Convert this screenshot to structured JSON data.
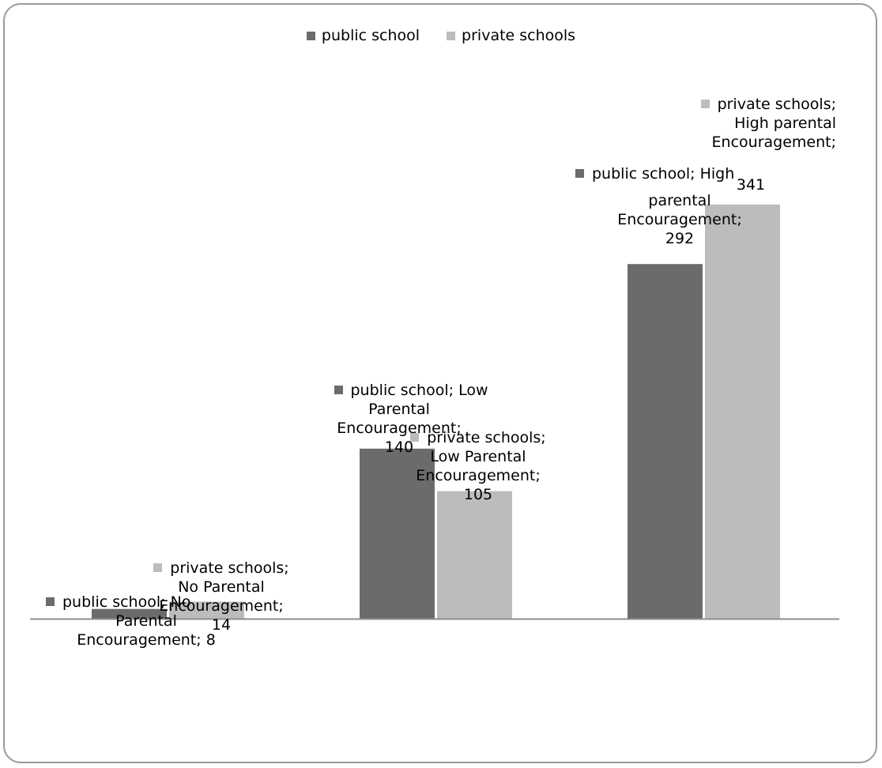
{
  "chart_data": {
    "type": "bar",
    "categories": [
      "No Parental Encouragement",
      "Low Parental Encouragement",
      "High parental Encouragement"
    ],
    "series": [
      {
        "name": "public school",
        "color": "#6b6b6b",
        "values": [
          8,
          140,
          292
        ],
        "labels": [
          [
            "public school; No",
            "Parental",
            "Encouragement; 8"
          ],
          [
            "public school; Low",
            "Parental",
            "Encouragement;",
            "140"
          ],
          [
            "public school; High",
            "parental",
            "Encouragement;",
            "292"
          ]
        ]
      },
      {
        "name": "private schools",
        "color": "#bcbcbc",
        "values": [
          14,
          105,
          341
        ],
        "labels": [
          [
            "private schools;",
            "No Parental",
            "Encouragement;",
            "14"
          ],
          [
            "private schools;",
            "Low Parental",
            "Encouragement;",
            "105"
          ],
          [
            "private schools;",
            "High parental",
            "Encouragement;",
            "341"
          ]
        ]
      }
    ],
    "ylim": [
      0,
      400
    ],
    "grid": false,
    "legend_position": "top"
  }
}
